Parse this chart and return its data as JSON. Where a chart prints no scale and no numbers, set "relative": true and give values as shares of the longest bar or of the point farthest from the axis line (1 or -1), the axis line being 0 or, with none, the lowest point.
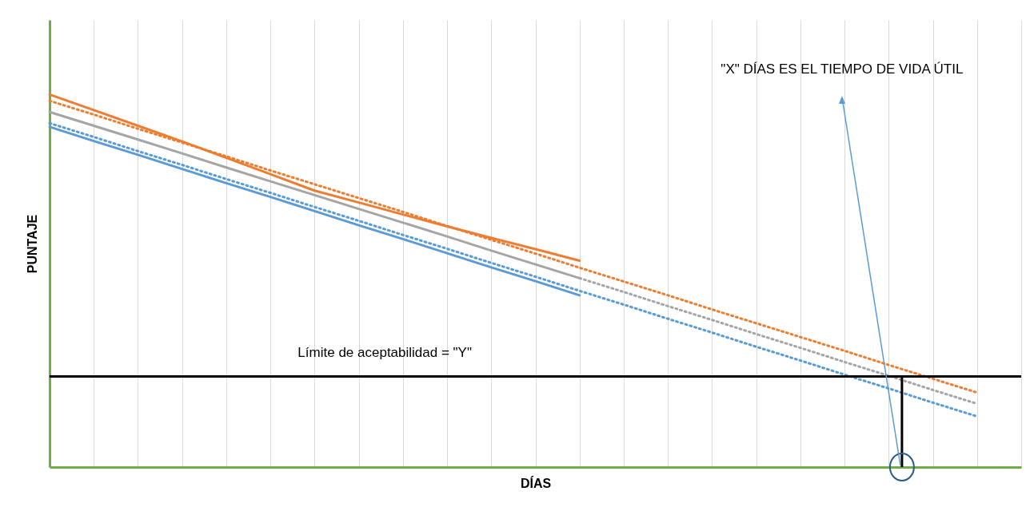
{
  "chart_data": {
    "type": "line",
    "relative": true,
    "xlabel": "DÍAS",
    "ylabel": "PUNTAJE",
    "grid": "x",
    "marker": "none",
    "categories": [
      null,
      null,
      null,
      null,
      null,
      null,
      null,
      null,
      null,
      null,
      null,
      null,
      null,
      null,
      null,
      null,
      null,
      null,
      null,
      null,
      null,
      null,
      null
    ],
    "series": [
      {
        "color": "#ed7d31",
        "line_style": "solid",
        "values": [
          1.0,
          0.958,
          0.916,
          0.874,
          0.83,
          0.786,
          0.742,
          0.71,
          0.678,
          0.646,
          0.615,
          0.585,
          0.554,
          null,
          null,
          null,
          null,
          null,
          null,
          null,
          null,
          null,
          null
        ]
      },
      {
        "color": "#a5a5a5",
        "line_style": "solid",
        "values": [
          0.953,
          0.916,
          0.879,
          0.842,
          0.804,
          0.767,
          0.73,
          0.693,
          0.656,
          0.619,
          0.581,
          0.544,
          0.507,
          null,
          null,
          null,
          null,
          null,
          null,
          null,
          null,
          null,
          null
        ]
      },
      {
        "color": "#5b9bd5",
        "line_style": "solid",
        "values": [
          0.913,
          0.875,
          0.838,
          0.8,
          0.762,
          0.725,
          0.687,
          0.649,
          0.612,
          0.574,
          0.536,
          0.499,
          0.461,
          null,
          null,
          null,
          null,
          null,
          null,
          null,
          null,
          null,
          null
        ]
      },
      {
        "color": "#ed7d31",
        "line_style": "dotted",
        "values": [
          0.983,
          0.946,
          0.908,
          0.871,
          0.834,
          0.796,
          0.759,
          0.722,
          0.685,
          0.647,
          0.61,
          0.573,
          0.535,
          0.498,
          0.461,
          0.423,
          0.386,
          0.349,
          0.312,
          0.274,
          0.237,
          0.2,
          null
        ]
      },
      {
        "color": "#a5a5a5",
        "line_style": "dotted",
        "values": [
          null,
          null,
          null,
          null,
          null,
          null,
          null,
          null,
          null,
          null,
          null,
          null,
          0.507,
          0.47,
          0.432,
          0.395,
          0.357,
          0.32,
          0.282,
          0.245,
          0.207,
          0.17,
          null
        ]
      },
      {
        "color": "#5b9bd5",
        "line_style": "dotted",
        "values": [
          0.923,
          0.886,
          0.848,
          0.811,
          0.773,
          0.736,
          0.698,
          0.661,
          0.623,
          0.586,
          0.548,
          0.511,
          0.473,
          0.436,
          0.398,
          0.361,
          0.323,
          0.286,
          0.248,
          0.211,
          0.173,
          0.136,
          null
        ]
      }
    ],
    "ref_lines": [
      {
        "axis": "y",
        "value": 0.243,
        "label": "Límite de aceptabilidad = \"Y\"",
        "color": "#000000"
      }
    ],
    "annotations": [
      "\"X\" DÍAS ES EL TIEMPO DE VIDA ÚTIL"
    ]
  }
}
